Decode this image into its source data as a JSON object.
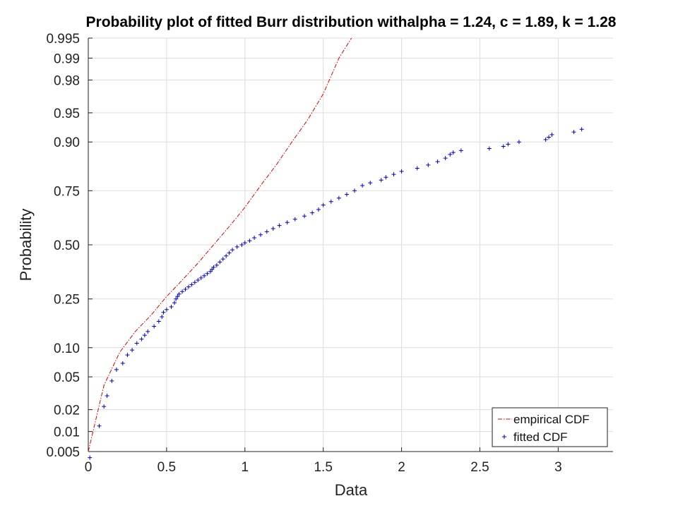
{
  "chart_data": {
    "type": "scatter",
    "title": "Probability plot of fitted Burr distribution withalpha = 1.24, c = 1.89, k = 1.28",
    "xlabel": "Data",
    "ylabel": "Probability",
    "xlim": [
      0,
      3.35
    ],
    "x_ticks": [
      "0",
      "0.5",
      "1",
      "1.5",
      "2",
      "2.5",
      "3"
    ],
    "y_ticks": [
      "0.005",
      "0.01",
      "0.02",
      "0.05",
      "0.10",
      "0.25",
      "0.50",
      "0.75",
      "0.90",
      "0.95",
      "0.98",
      "0.99",
      "0.995"
    ],
    "grid": true,
    "legend_position": "bottom-right",
    "series": [
      {
        "name": "empirical CDF",
        "style": "dash-dot line",
        "color": "#e00000",
        "x": [
          0.0,
          0.1,
          0.2,
          0.3,
          0.4,
          0.5,
          0.6,
          0.7,
          0.8,
          0.9,
          1.0,
          1.1,
          1.2,
          1.3,
          1.4,
          1.5,
          1.6,
          1.68
        ],
        "y": [
          0.005,
          0.04,
          0.09,
          0.14,
          0.19,
          0.26,
          0.33,
          0.41,
          0.5,
          0.59,
          0.68,
          0.77,
          0.84,
          0.9,
          0.94,
          0.97,
          0.99,
          0.995
        ]
      },
      {
        "name": "fitted CDF",
        "style": "plus markers",
        "color": "#0000cc",
        "x": [
          0.01,
          0.07,
          0.1,
          0.12,
          0.15,
          0.18,
          0.22,
          0.25,
          0.28,
          0.31,
          0.34,
          0.36,
          0.38,
          0.42,
          0.45,
          0.47,
          0.48,
          0.5,
          0.53,
          0.55,
          0.56,
          0.57,
          0.58,
          0.6,
          0.62,
          0.64,
          0.66,
          0.68,
          0.7,
          0.72,
          0.74,
          0.76,
          0.78,
          0.79,
          0.8,
          0.82,
          0.84,
          0.86,
          0.88,
          0.9,
          0.92,
          0.95,
          0.98,
          1.0,
          1.03,
          1.06,
          1.1,
          1.14,
          1.18,
          1.22,
          1.27,
          1.32,
          1.38,
          1.43,
          1.47,
          1.5,
          1.55,
          1.6,
          1.65,
          1.7,
          1.75,
          1.8,
          1.87,
          1.9,
          1.95,
          2.0,
          2.1,
          2.17,
          2.23,
          2.28,
          2.31,
          2.33,
          2.38,
          2.56,
          2.65,
          2.68,
          2.75,
          2.92,
          2.94,
          2.96,
          3.1,
          3.15
        ],
        "y": [
          0.004,
          0.012,
          0.022,
          0.03,
          0.045,
          0.06,
          0.07,
          0.085,
          0.095,
          0.11,
          0.12,
          0.13,
          0.14,
          0.155,
          0.17,
          0.185,
          0.2,
          0.21,
          0.22,
          0.235,
          0.25,
          0.26,
          0.27,
          0.28,
          0.29,
          0.3,
          0.31,
          0.32,
          0.33,
          0.34,
          0.35,
          0.36,
          0.37,
          0.38,
          0.39,
          0.4,
          0.415,
          0.43,
          0.445,
          0.46,
          0.475,
          0.49,
          0.5,
          0.51,
          0.52,
          0.535,
          0.55,
          0.565,
          0.58,
          0.595,
          0.61,
          0.625,
          0.64,
          0.655,
          0.67,
          0.69,
          0.705,
          0.72,
          0.735,
          0.75,
          0.77,
          0.78,
          0.79,
          0.8,
          0.81,
          0.82,
          0.83,
          0.84,
          0.85,
          0.86,
          0.87,
          0.875,
          0.88,
          0.885,
          0.89,
          0.895,
          0.9,
          0.905,
          0.91,
          0.915,
          0.92,
          0.925
        ]
      }
    ],
    "colors": {
      "empirical": "#e00000",
      "fitted": "#0000cc",
      "grid": "#dddddd"
    }
  }
}
